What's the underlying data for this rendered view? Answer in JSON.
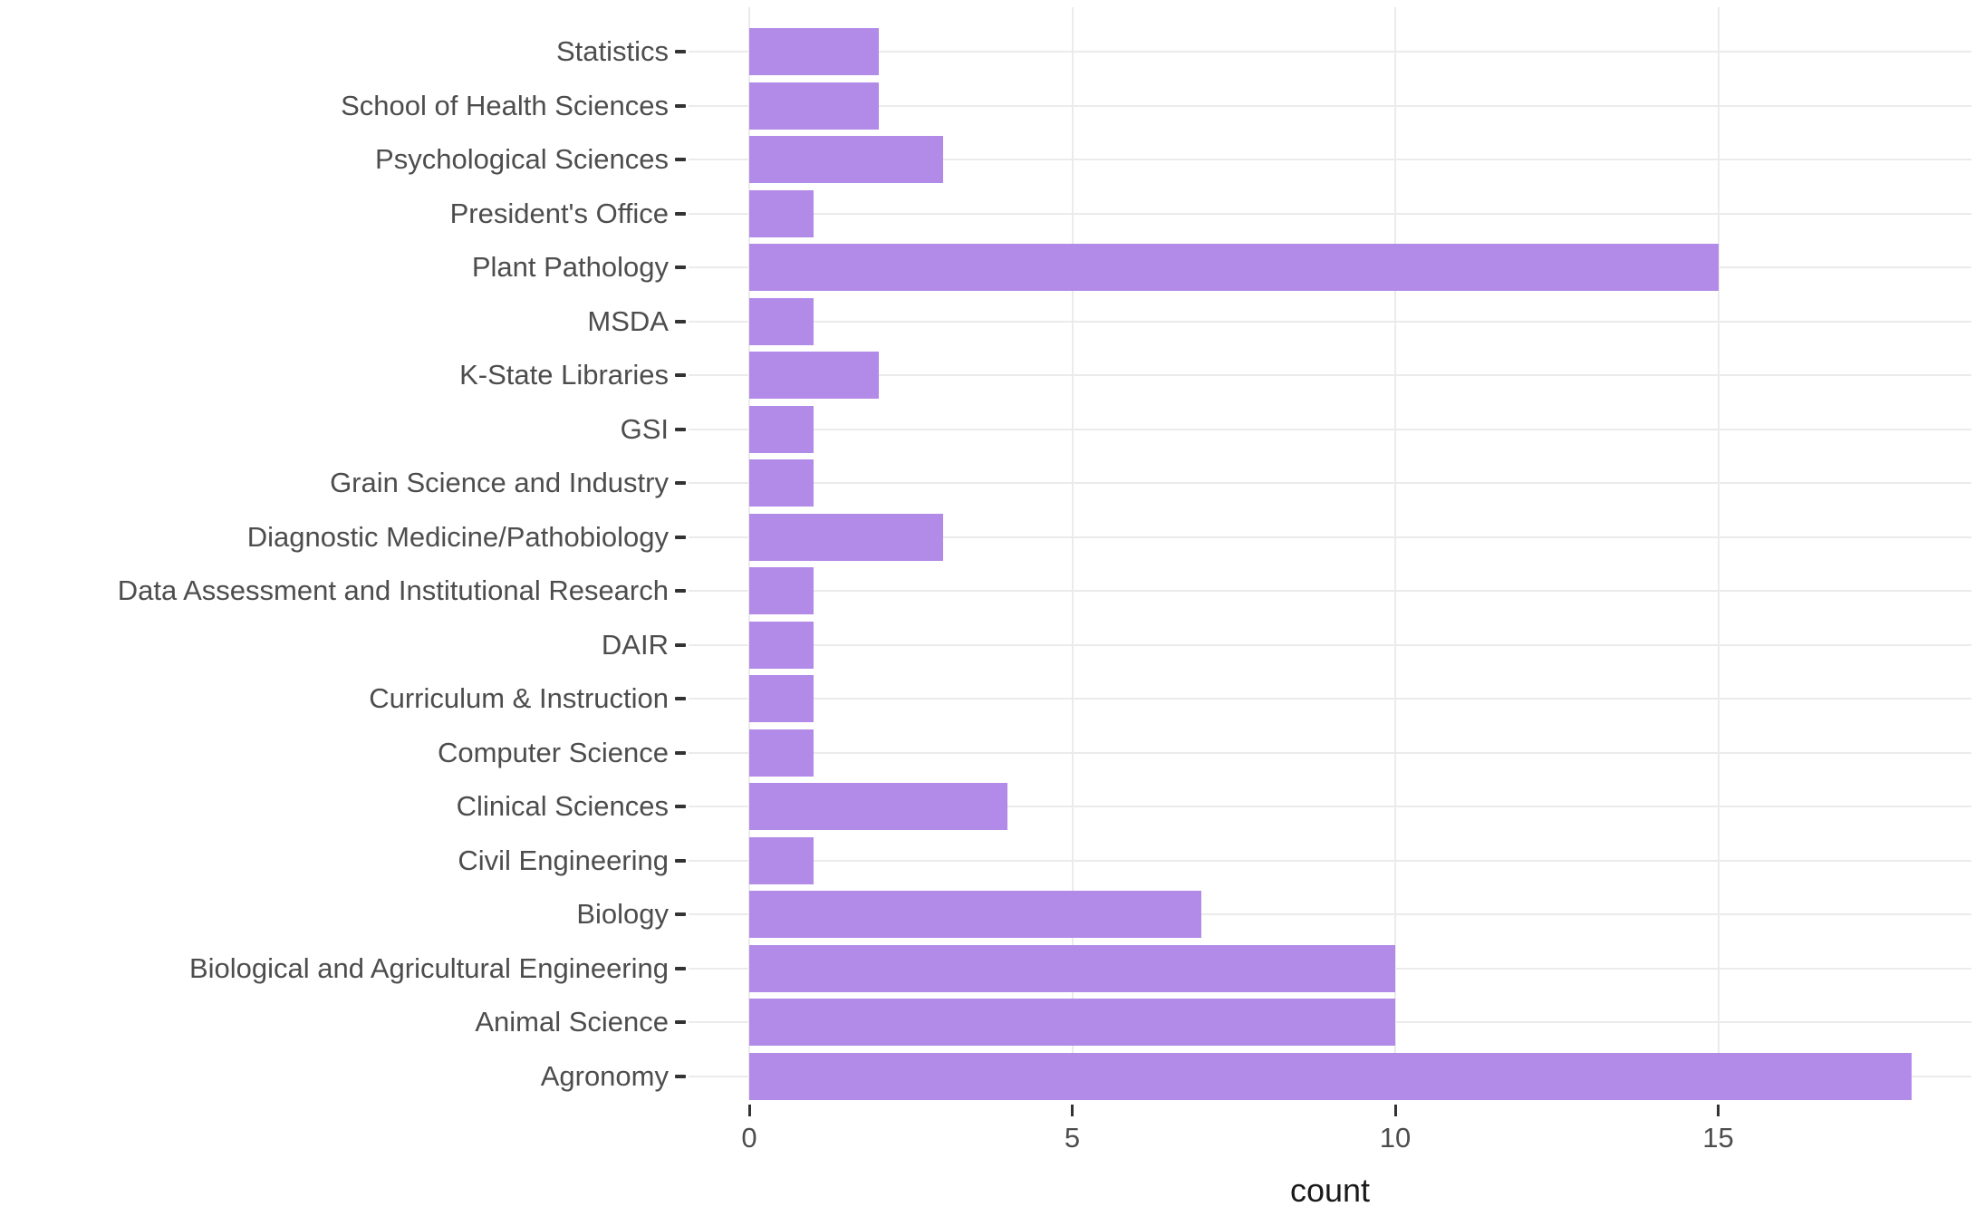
{
  "chart_data": {
    "type": "bar",
    "orientation": "horizontal",
    "title": "",
    "xlabel": "count",
    "ylabel": "",
    "categories": [
      "Statistics",
      "School of Health Sciences",
      "Psychological Sciences",
      "President's Office",
      "Plant Pathology",
      "MSDA",
      "K-State Libraries",
      "GSI",
      "Grain Science and Industry",
      "Diagnostic Medicine/Pathobiology",
      "Data Assessment and Institutional Research",
      "DAIR",
      "Curriculum & Instruction",
      "Computer Science",
      "Clinical Sciences",
      "Civil Engineering",
      "Biology",
      "Biological and Agricultural Engineering",
      "Animal Science",
      "Agronomy"
    ],
    "values": [
      2,
      2,
      3,
      1,
      15,
      1,
      2,
      1,
      1,
      3,
      1,
      1,
      1,
      1,
      4,
      1,
      7,
      10,
      10,
      18
    ],
    "x_ticks": [
      0,
      5,
      10,
      15
    ],
    "xlim": [
      0,
      18
    ],
    "grid": "major vertical lines at x ticks, light horizontal line per category",
    "legend": "none",
    "colors": {
      "bar": "#B28BE8",
      "grid": "#EBEBEB",
      "axis_text": "#4D4D4D",
      "tick_mark": "#333333",
      "axis_title": "#1A1A1A",
      "background": "#FFFFFF"
    }
  }
}
